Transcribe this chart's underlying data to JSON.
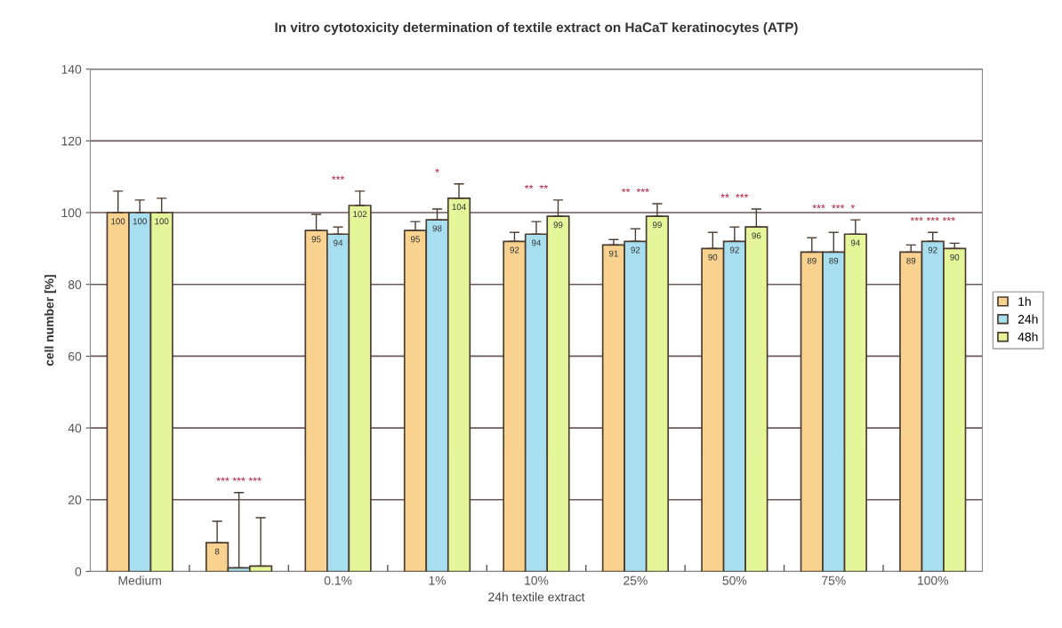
{
  "chart_data": {
    "type": "bar",
    "title": "In vitro cytotoxicity determination of textile extract on HaCaT keratinocytes (ATP)",
    "xlabel": "24h textile extract",
    "ylabel": "cell number [%]",
    "categories": [
      "Medium",
      null,
      "0.1%",
      "1%",
      "10%",
      "25%",
      "50%",
      "75%",
      "100%"
    ],
    "series": [
      {
        "name": "1h",
        "color": "#f8d28e",
        "values": [
          100,
          8,
          95,
          95,
          92,
          91,
          90,
          89,
          89
        ],
        "errors": [
          6,
          6,
          4.5,
          2.5,
          2.5,
          1.5,
          4.5,
          4,
          2
        ],
        "value_labels": [
          "100",
          "8",
          "95",
          "95",
          "92",
          "91",
          "90",
          "89",
          "89"
        ]
      },
      {
        "name": "24h",
        "color": "#a8dff0",
        "values": [
          100,
          1,
          94,
          98,
          94,
          92,
          92,
          89,
          92
        ],
        "errors": [
          3.5,
          21,
          2,
          3,
          3.5,
          3.5,
          4,
          5.5,
          2.5
        ],
        "value_labels": [
          "100",
          null,
          "94",
          "98",
          "94",
          "92",
          "92",
          "89",
          "92"
        ]
      },
      {
        "name": "48h",
        "color": "#e4f59a",
        "values": [
          100,
          1.5,
          102,
          104,
          99,
          99,
          96,
          94,
          90
        ],
        "errors": [
          4,
          13.5,
          4,
          4,
          4.5,
          3.5,
          5,
          4,
          1.5
        ],
        "value_labels": [
          "100",
          null,
          "102",
          "104",
          "99",
          "99",
          "96",
          "94",
          "90"
        ]
      }
    ],
    "ylim": [
      0,
      140
    ],
    "yticks": [
      0,
      20,
      40,
      60,
      80,
      100,
      120,
      140
    ],
    "grid": "y",
    "legend": "right",
    "annotations": [
      "*** *** ***",
      "***",
      "*",
      "**  **",
      "**  ***",
      "**  ***",
      "***  ***  *",
      "*** *** ***"
    ]
  }
}
